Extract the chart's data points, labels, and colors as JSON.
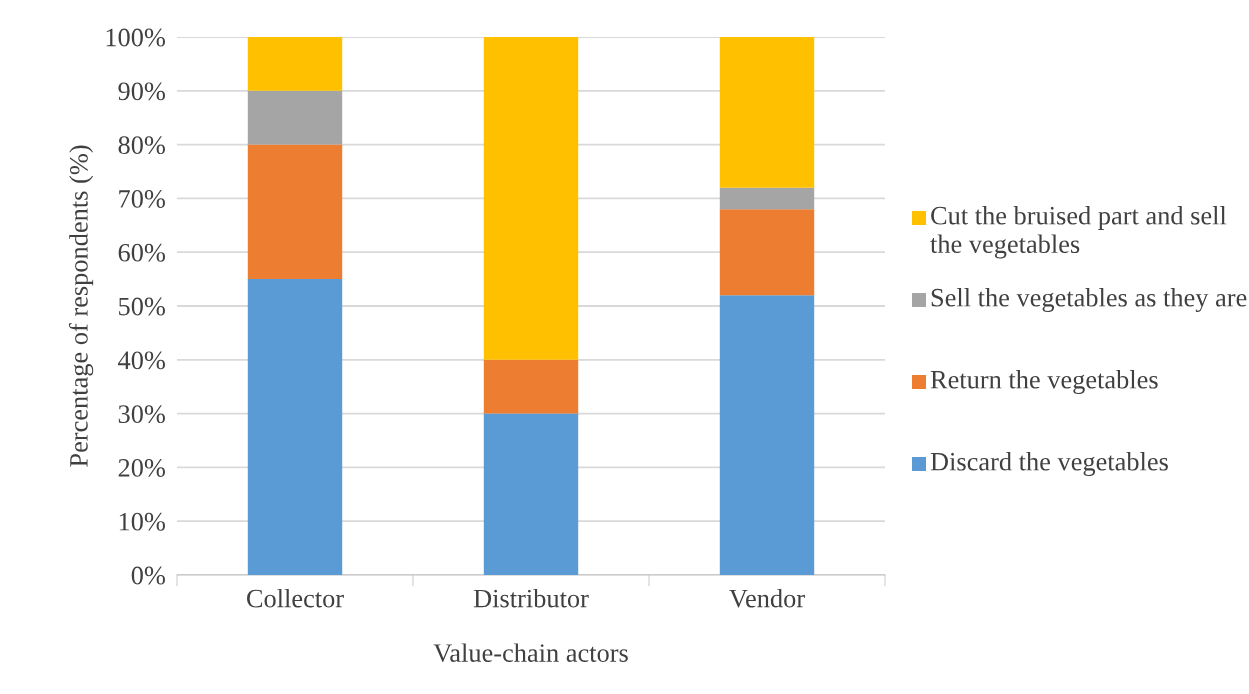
{
  "chart_data": {
    "type": "bar",
    "stacked": true,
    "xlabel": "Value-chain actors",
    "ylabel": "Percentage of respondents (%)",
    "categories": [
      "Collector",
      "Distributor",
      "Vendor"
    ],
    "series": [
      {
        "name": "Discard the vegetables",
        "color": "#5b9bd5",
        "values": [
          55,
          30,
          52
        ]
      },
      {
        "name": "Return the vegetables",
        "color": "#ed7d31",
        "values": [
          25,
          10,
          16
        ]
      },
      {
        "name": "Sell the vegetables as they are",
        "color": "#a5a5a5",
        "values": [
          10,
          0,
          4
        ]
      },
      {
        "name": "Cut the bruised part and sell the vegetables",
        "color": "#ffc000",
        "values": [
          10,
          60,
          28
        ]
      }
    ],
    "ylim": [
      0,
      100
    ],
    "yticks": [
      {
        "value": 0,
        "label": "0%"
      },
      {
        "value": 10,
        "label": "10%"
      },
      {
        "value": 20,
        "label": "20%"
      },
      {
        "value": 30,
        "label": "30%"
      },
      {
        "value": 40,
        "label": "40%"
      },
      {
        "value": 50,
        "label": "50%"
      },
      {
        "value": 60,
        "label": "60%"
      },
      {
        "value": 70,
        "label": "70%"
      },
      {
        "value": 80,
        "label": "80%"
      },
      {
        "value": 90,
        "label": "90%"
      },
      {
        "value": 100,
        "label": "100%"
      }
    ],
    "grid": "y",
    "legend": "right"
  }
}
